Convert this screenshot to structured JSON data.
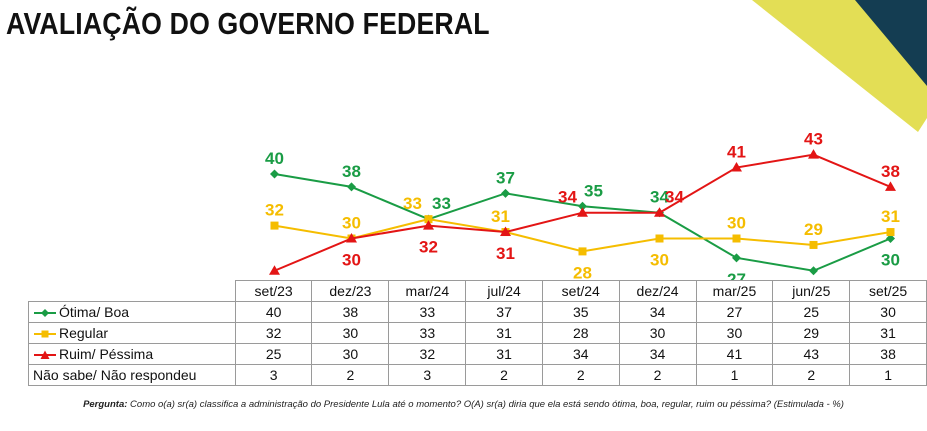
{
  "title": "AVALIAÇÃO DO GOVERNO FEDERAL",
  "colors": {
    "otima_boa": "#1a9c45",
    "regular": "#f5bd00",
    "ruim_pessima": "#e31515",
    "corner_navy": "#143d52",
    "corner_yellow": "#e3de55"
  },
  "chart_data": {
    "type": "line",
    "categories": [
      "set/23",
      "dez/23",
      "mar/24",
      "jul/24",
      "set/24",
      "dez/24",
      "mar/25",
      "jun/25",
      "set/25"
    ],
    "series": [
      {
        "name": "Ótima/ Boa",
        "values": [
          40,
          38,
          33,
          37,
          35,
          34,
          27,
          25,
          30
        ],
        "color": "#1a9c45",
        "marker": "diamond",
        "labels": "above"
      },
      {
        "name": "Regular",
        "values": [
          32,
          30,
          33,
          31,
          28,
          30,
          30,
          29,
          31
        ],
        "color": "#f5bd00",
        "marker": "square",
        "labels": "mixed"
      },
      {
        "name": "Ruim/ Péssima",
        "values": [
          25,
          30,
          32,
          31,
          34,
          34,
          41,
          43,
          38
        ],
        "color": "#e31515",
        "marker": "triangle",
        "labels": "mixed"
      }
    ],
    "legend": "in-table",
    "grid": false
  },
  "table": {
    "headers": [
      "set/23",
      "dez/23",
      "mar/24",
      "jul/24",
      "set/24",
      "dez/24",
      "mar/25",
      "jun/25",
      "set/25"
    ],
    "rows": [
      {
        "label": "Ótima/ Boa",
        "values": [
          "40",
          "38",
          "33",
          "37",
          "35",
          "34",
          "27",
          "25",
          "30"
        ]
      },
      {
        "label": "Regular",
        "values": [
          "32",
          "30",
          "33",
          "31",
          "28",
          "30",
          "30",
          "29",
          "31"
        ]
      },
      {
        "label": "Ruim/ Péssima",
        "values": [
          "25",
          "30",
          "32",
          "31",
          "34",
          "34",
          "41",
          "43",
          "38"
        ]
      },
      {
        "label": "Não sabe/ Não respondeu",
        "values": [
          "3",
          "2",
          "3",
          "2",
          "2",
          "2",
          "1",
          "2",
          "1"
        ]
      }
    ]
  },
  "footnote": {
    "label": "Pergunta:",
    "text": " Como o(a) sr(a) classifica a administração do Presidente Lula até o momento? O(A) sr(a) diria que ela está sendo ótima, boa, regular, ruim ou péssima? (Estimulada - %)"
  }
}
